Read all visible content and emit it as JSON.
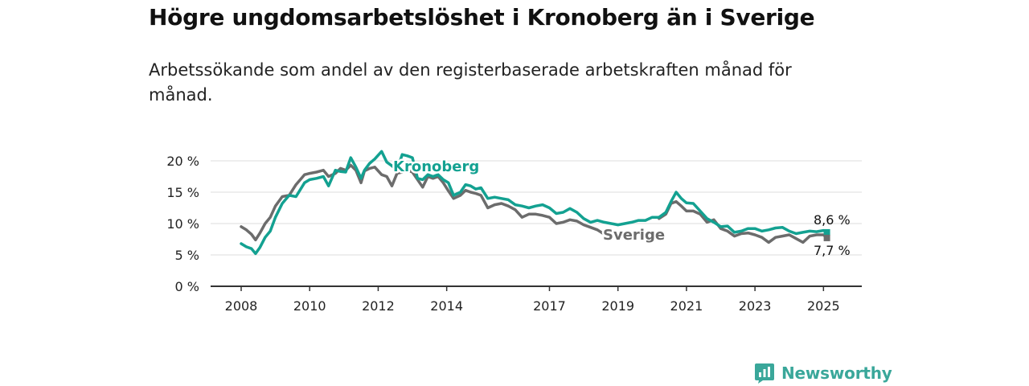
{
  "title": "Högre ungdomsarbetslöshet i Kronoberg än i Sverige",
  "subtitle": "Arbetssökande som andel av den registerbaserade arbetskraften månad för månad.",
  "brand": {
    "name": "Newsworthy",
    "icon": "newsworthy-logo-icon"
  },
  "colors": {
    "kronoberg": "#13a191",
    "sverige": "#6c6c6c",
    "grid": "#dddddd",
    "axis": "#333333"
  },
  "chart_data": {
    "type": "line",
    "title": "",
    "xlabel": "",
    "ylabel": "",
    "xlim": [
      2008.0,
      2025.25
    ],
    "ylim": [
      0,
      20
    ],
    "grid": true,
    "y_ticks": [
      0,
      5,
      10,
      15,
      20
    ],
    "y_tick_labels": [
      "0 %",
      "5 %",
      "10 %",
      "15 %",
      "20 %"
    ],
    "x_ticks": [
      2008,
      2010,
      2012,
      2014,
      2017,
      2019,
      2021,
      2023,
      2025
    ],
    "x_tick_labels": [
      "2008",
      "2010",
      "2012",
      "2014",
      "2017",
      "2019",
      "2021",
      "2023",
      "2025"
    ],
    "series": [
      {
        "name": "Kronoberg",
        "end_label": "8,6 %",
        "x": [
          2008.0,
          2008.15,
          2008.3,
          2008.42,
          2008.55,
          2008.7,
          2008.85,
          2009.0,
          2009.2,
          2009.4,
          2009.6,
          2009.85,
          2010.0,
          2010.2,
          2010.4,
          2010.55,
          2010.75,
          2010.9,
          2011.05,
          2011.2,
          2011.35,
          2011.5,
          2011.6,
          2011.75,
          2011.9,
          2012.1,
          2012.25,
          2012.4,
          2012.55,
          2012.7,
          2012.85,
          2013.0,
          2013.15,
          2013.3,
          2013.45,
          2013.6,
          2013.75,
          2013.9,
          2014.05,
          2014.2,
          2014.4,
          2014.55,
          2014.7,
          2014.85,
          2015.0,
          2015.2,
          2015.4,
          2015.6,
          2015.8,
          2016.0,
          2016.2,
          2016.4,
          2016.6,
          2016.8,
          2017.0,
          2017.2,
          2017.4,
          2017.6,
          2017.8,
          2018.0,
          2018.2,
          2018.4,
          2018.6,
          2018.8,
          2019.0,
          2019.2,
          2019.4,
          2019.6,
          2019.8,
          2020.0,
          2020.2,
          2020.4,
          2020.55,
          2020.7,
          2020.85,
          2021.0,
          2021.2,
          2021.4,
          2021.6,
          2021.8,
          2022.0,
          2022.2,
          2022.4,
          2022.6,
          2022.8,
          2023.0,
          2023.2,
          2023.4,
          2023.6,
          2023.8,
          2024.0,
          2024.2,
          2024.4,
          2024.6,
          2024.8,
          2025.0,
          2025.1
        ],
        "values": [
          6.8,
          6.3,
          6.0,
          5.2,
          6.2,
          7.8,
          8.8,
          11.0,
          13.2,
          14.5,
          14.3,
          16.5,
          17.0,
          17.2,
          17.5,
          16.0,
          18.5,
          18.3,
          18.2,
          20.5,
          19.0,
          17.2,
          18.5,
          19.6,
          20.3,
          21.5,
          19.8,
          19.2,
          18.5,
          21.0,
          20.8,
          20.5,
          17.2,
          17.0,
          17.8,
          17.5,
          17.8,
          17.0,
          16.5,
          14.5,
          15.0,
          16.2,
          16.0,
          15.5,
          15.7,
          14.0,
          14.2,
          14.0,
          13.8,
          13.0,
          12.8,
          12.5,
          12.8,
          13.0,
          12.5,
          11.6,
          11.8,
          12.4,
          11.8,
          10.8,
          10.2,
          10.5,
          10.2,
          10.0,
          9.8,
          10.0,
          10.2,
          10.5,
          10.5,
          11.0,
          11.0,
          11.8,
          13.5,
          15.0,
          14.0,
          13.3,
          13.2,
          12.0,
          10.8,
          10.2,
          9.5,
          9.6,
          8.6,
          8.8,
          9.2,
          9.2,
          8.8,
          9.0,
          9.3,
          9.4,
          8.8,
          8.4,
          8.6,
          8.8,
          8.7,
          8.9,
          8.6
        ]
      },
      {
        "name": "Sverige",
        "end_label": "7,7 %",
        "x": [
          2008.0,
          2008.15,
          2008.3,
          2008.42,
          2008.55,
          2008.7,
          2008.85,
          2009.0,
          2009.2,
          2009.4,
          2009.6,
          2009.85,
          2010.0,
          2010.2,
          2010.4,
          2010.55,
          2010.75,
          2010.9,
          2011.05,
          2011.2,
          2011.35,
          2011.5,
          2011.6,
          2011.75,
          2011.9,
          2012.1,
          2012.25,
          2012.4,
          2012.55,
          2012.7,
          2012.85,
          2013.0,
          2013.15,
          2013.3,
          2013.45,
          2013.6,
          2013.75,
          2013.9,
          2014.05,
          2014.2,
          2014.4,
          2014.55,
          2014.7,
          2014.85,
          2015.0,
          2015.2,
          2015.4,
          2015.6,
          2015.8,
          2016.0,
          2016.2,
          2016.4,
          2016.6,
          2016.8,
          2017.0,
          2017.2,
          2017.4,
          2017.6,
          2017.8,
          2018.0,
          2018.2,
          2018.4,
          2018.6,
          2018.8,
          2019.0,
          2019.2,
          2019.4,
          2019.6,
          2019.8,
          2020.0,
          2020.2,
          2020.4,
          2020.55,
          2020.7,
          2020.85,
          2021.0,
          2021.2,
          2021.4,
          2021.6,
          2021.8,
          2022.0,
          2022.2,
          2022.4,
          2022.6,
          2022.8,
          2023.0,
          2023.2,
          2023.4,
          2023.6,
          2023.8,
          2024.0,
          2024.2,
          2024.4,
          2024.6,
          2024.8,
          2025.0,
          2025.1
        ],
        "values": [
          9.5,
          9.0,
          8.3,
          7.4,
          8.5,
          10.0,
          11.0,
          12.8,
          14.3,
          14.5,
          16.2,
          17.8,
          18.0,
          18.2,
          18.5,
          17.5,
          18.0,
          18.8,
          18.5,
          19.3,
          18.5,
          16.5,
          18.4,
          18.8,
          19.0,
          17.8,
          17.5,
          16.0,
          18.0,
          18.2,
          18.5,
          18.2,
          17.0,
          15.8,
          17.5,
          17.2,
          17.5,
          16.5,
          15.2,
          14.0,
          14.5,
          15.3,
          15.0,
          14.8,
          14.5,
          12.5,
          13.0,
          13.2,
          12.8,
          12.2,
          11.0,
          11.5,
          11.5,
          11.3,
          11.0,
          10.0,
          10.2,
          10.6,
          10.4,
          9.8,
          9.4,
          9.0,
          8.3,
          null,
          null,
          null,
          null,
          null,
          null,
          null,
          10.8,
          11.5,
          13.2,
          13.5,
          12.8,
          12.0,
          12.0,
          11.5,
          10.2,
          10.6,
          9.2,
          8.8,
          8.0,
          8.4,
          8.5,
          8.2,
          7.8,
          7.0,
          7.8,
          8.0,
          8.2,
          7.6,
          7.0,
          8.0,
          8.2,
          8.2,
          7.7
        ]
      }
    ],
    "annotations": [
      {
        "text": "Kronoberg",
        "series": "Kronoberg"
      },
      {
        "text": "Sverige",
        "series": "Sverige"
      }
    ]
  }
}
